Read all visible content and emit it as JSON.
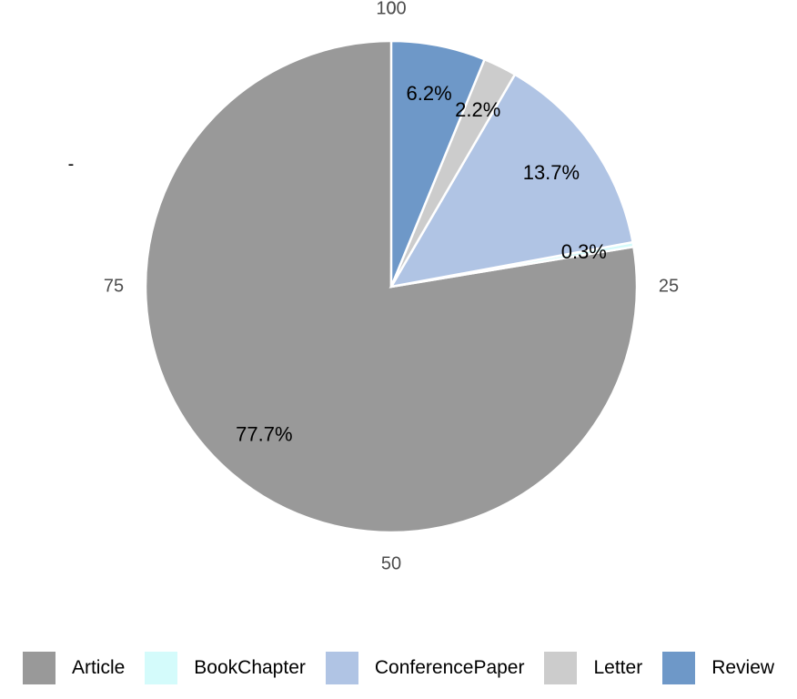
{
  "chart_data": {
    "type": "pie",
    "categories": [
      "-"
    ],
    "series": [
      {
        "name": "Article",
        "color": "#999999",
        "values": [
          77.7
        ],
        "value_labels": [
          "77.7%"
        ]
      },
      {
        "name": "BookChapter",
        "color": "#d4fbfb",
        "values": [
          0.3
        ],
        "value_labels": [
          "0.3%"
        ]
      },
      {
        "name": "ConferencePaper",
        "color": "#b0c4e4",
        "values": [
          13.7
        ],
        "value_labels": [
          "13.7%"
        ]
      },
      {
        "name": "Letter",
        "color": "#cccccc",
        "values": [
          2.2
        ],
        "value_labels": [
          "2.2%"
        ]
      },
      {
        "name": "Review",
        "color": "#6e98c8",
        "values": [
          6.2
        ],
        "value_labels": [
          "6.2%"
        ]
      }
    ],
    "ylim": [
      0,
      100
    ],
    "yticks": [
      0,
      25,
      50,
      75,
      100
    ],
    "legend": "bottom"
  }
}
